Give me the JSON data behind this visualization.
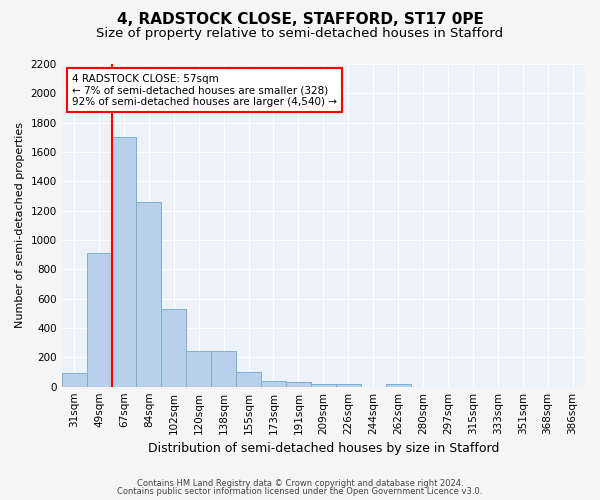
{
  "title_line1": "4, RADSTOCK CLOSE, STAFFORD, ST17 0PE",
  "title_line2": "Size of property relative to semi-detached houses in Stafford",
  "xlabel": "Distribution of semi-detached houses by size in Stafford",
  "ylabel": "Number of semi-detached properties",
  "footnote1": "Contains HM Land Registry data © Crown copyright and database right 2024.",
  "footnote2": "Contains public sector information licensed under the Open Government Licence v3.0.",
  "categories": [
    "31sqm",
    "49sqm",
    "67sqm",
    "84sqm",
    "102sqm",
    "120sqm",
    "138sqm",
    "155sqm",
    "173sqm",
    "191sqm",
    "209sqm",
    "226sqm",
    "244sqm",
    "262sqm",
    "280sqm",
    "297sqm",
    "315sqm",
    "333sqm",
    "351sqm",
    "368sqm",
    "386sqm"
  ],
  "values": [
    90,
    910,
    1700,
    1260,
    530,
    240,
    240,
    100,
    40,
    30,
    20,
    20,
    0,
    20,
    0,
    0,
    0,
    0,
    0,
    0,
    0
  ],
  "bar_color": "#b8d0ea",
  "bar_edge_color": "#7aafd4",
  "ylim": [
    0,
    2200
  ],
  "yticks": [
    0,
    200,
    400,
    600,
    800,
    1000,
    1200,
    1400,
    1600,
    1800,
    2000,
    2200
  ],
  "property_label": "4 RADSTOCK CLOSE: 57sqm",
  "pct_smaller": "7%",
  "n_smaller": "328",
  "pct_larger": "92%",
  "n_larger": "4,540",
  "red_line_x": 1.5,
  "bg_color": "#edf2f9",
  "grid_color": "#ffffff",
  "fig_bg_color": "#f5f5f5",
  "title_fontsize": 11,
  "subtitle_fontsize": 9.5,
  "xlabel_fontsize": 9,
  "ylabel_fontsize": 8,
  "tick_fontsize": 7.5,
  "ann_fontsize": 7.5
}
